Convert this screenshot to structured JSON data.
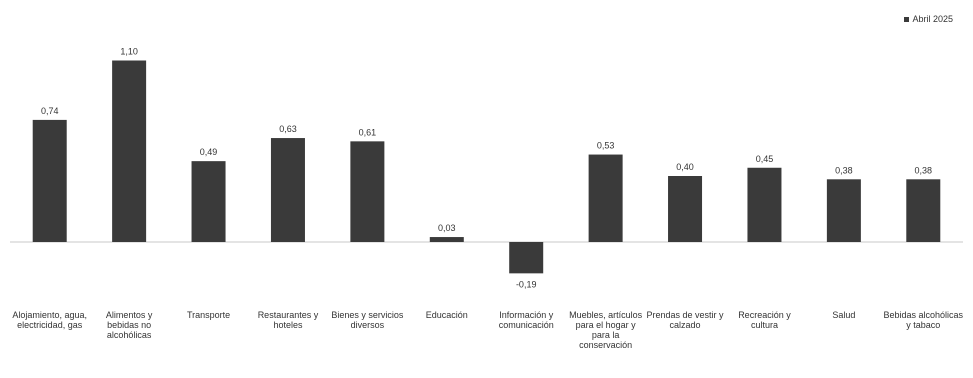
{
  "chart_data": {
    "type": "bar",
    "title": "",
    "xlabel": "",
    "ylabel": "",
    "categories": [
      "Alojamiento, agua, electricidad, gas",
      "Alimentos y bebidas no alcohólicas",
      "Transporte",
      "Restaurantes y hoteles",
      "Bienes y servicios diversos",
      "Educación",
      "Información y comunicación",
      "Muebles, artículos para el hogar y para la conservación",
      "Prendas de vestir y calzado",
      "Recreación y cultura",
      "Salud",
      "Bebidas alcohólicas y tabaco"
    ],
    "series": [
      {
        "name": "Abril 2025",
        "values": [
          0.74,
          1.1,
          0.49,
          0.63,
          0.61,
          0.03,
          -0.19,
          0.53,
          0.4,
          0.45,
          0.38,
          0.38
        ],
        "labels": [
          "0,74",
          "1,10",
          "0,49",
          "0,63",
          "0,61",
          "0,03",
          "-0,19",
          "0,53",
          "0,40",
          "0,45",
          "0,38",
          "0,38"
        ]
      }
    ],
    "ylim": [
      -0.25,
      1.2
    ],
    "grid": false,
    "legend_position": "top-right",
    "colors": {
      "bar": "#3a3a3a",
      "baseline": "#c8c8c8"
    }
  }
}
